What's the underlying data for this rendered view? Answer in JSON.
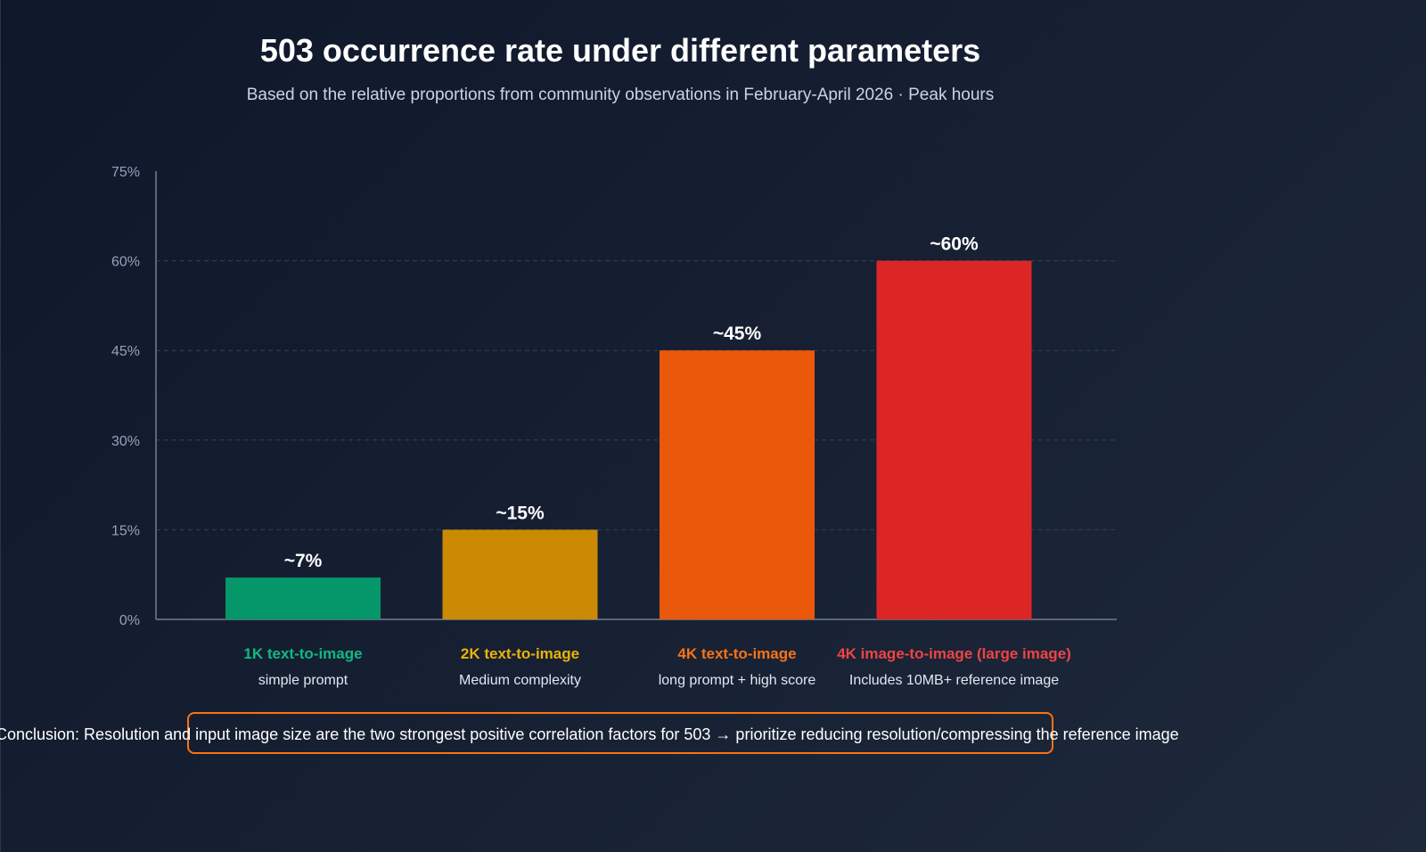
{
  "chart_data": {
    "type": "bar",
    "title": "503 occurrence rate under different parameters",
    "subtitle": "Based on the relative proportions from community observations in February-April 2026 · Peak hours",
    "ylim": [
      0,
      75
    ],
    "yticks": [
      0,
      15,
      30,
      45,
      60,
      75
    ],
    "ytick_labels": [
      "0%",
      "15%",
      "30%",
      "45%",
      "60%",
      "75%"
    ],
    "grid": "dashed horizontal",
    "categories": [
      "1K text-to-image",
      "2K text-to-image",
      "4K text-to-image",
      "4K image-to-image (large image)"
    ],
    "category_subtitles": [
      "simple prompt",
      "Medium complexity",
      "long prompt + high score",
      "Includes 10MB+ reference image"
    ],
    "values": [
      7,
      15,
      45,
      60
    ],
    "data_labels": [
      "~7%",
      "~15%",
      "~45%",
      "~60%"
    ],
    "colors": [
      "#059669",
      "#ca8a04",
      "#ea580c",
      "#dc2626"
    ],
    "label_colors": [
      "#10b981",
      "#eab308",
      "#f97316",
      "#ef4444"
    ]
  },
  "conclusion": {
    "text": "Conclusion: Resolution and input image size are the two strongest positive correlation factors for 503 → prioritize reducing resolution/compressing the reference image",
    "border_color": "#f97316"
  }
}
